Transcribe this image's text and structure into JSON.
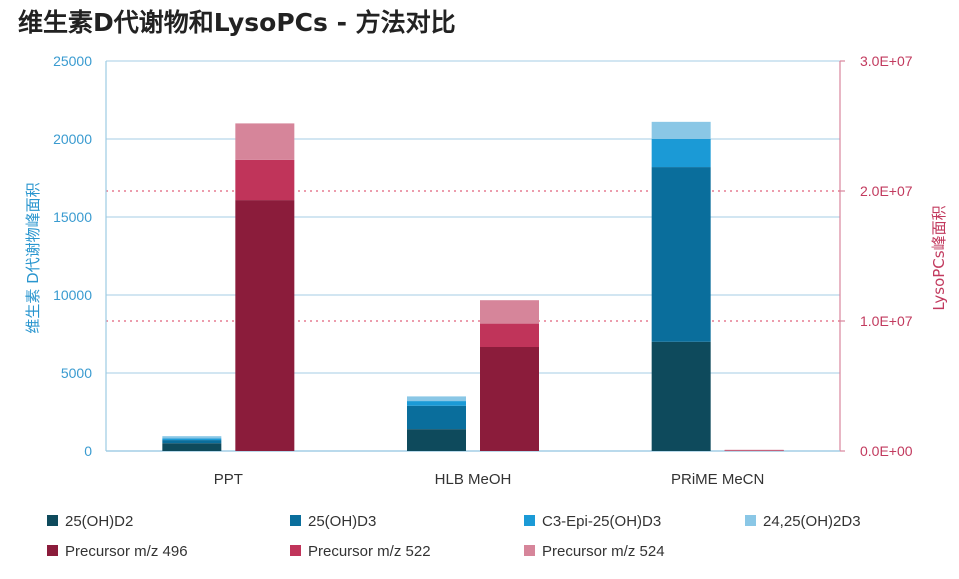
{
  "chart_data": {
    "type": "bar",
    "title": "维生素D代谢物和LysoPCs - 方法对比",
    "ylabel": "维生素 D代谢物峰面积",
    "ylabel_right": "LysoPCs峰面积",
    "ylim": [
      0,
      25000
    ],
    "ylim_right": [
      0,
      30000000
    ],
    "yticks": [
      0,
      5000,
      10000,
      15000,
      20000,
      25000
    ],
    "yticks_labels": [
      "0",
      "5000",
      "10000",
      "15000",
      "20000",
      "25000"
    ],
    "yticks_right": [
      0,
      10000000,
      20000000,
      30000000
    ],
    "yticks_right_labels": [
      "0.0E+00",
      "1.0E+07",
      "2.0E+07",
      "3.0E+07"
    ],
    "categories": [
      "PPT",
      "HLB MeOH",
      "PRiME MeCN"
    ],
    "groups": [
      {
        "name": "Vitamin D metabolites",
        "axis": "left",
        "stacked": true,
        "series": [
          {
            "name": "25(OH)D2",
            "color": "#0e4a5c",
            "values": [
              500,
              1400,
              7000
            ]
          },
          {
            "name": "25(OH)D3",
            "color": "#0a6e9c",
            "values": [
              200,
              1500,
              11200
            ]
          },
          {
            "name": "C3-Epi-25(OH)D3",
            "color": "#1b9ad6",
            "values": [
              100,
              300,
              1800
            ]
          },
          {
            "name": "24,25(OH)2D3",
            "color": "#8ac7e6",
            "values": [
              150,
              300,
              1100
            ]
          }
        ]
      },
      {
        "name": "LysoPCs",
        "axis": "right",
        "stacked": true,
        "series": [
          {
            "name": "Precursor m/z 496",
            "color": "#8b1c3b",
            "values": [
              19300000,
              8000000,
              60000
            ]
          },
          {
            "name": "Precursor m/z 522",
            "color": "#c0345a",
            "values": [
              3100000,
              1800000,
              20000
            ]
          },
          {
            "name": "Precursor m/z 524",
            "color": "#d6859a",
            "values": [
              2800000,
              1800000,
              10000
            ]
          }
        ]
      }
    ],
    "reference_lines_right": [
      10000000,
      20000000
    ],
    "grid": true,
    "legend": "bottom"
  }
}
